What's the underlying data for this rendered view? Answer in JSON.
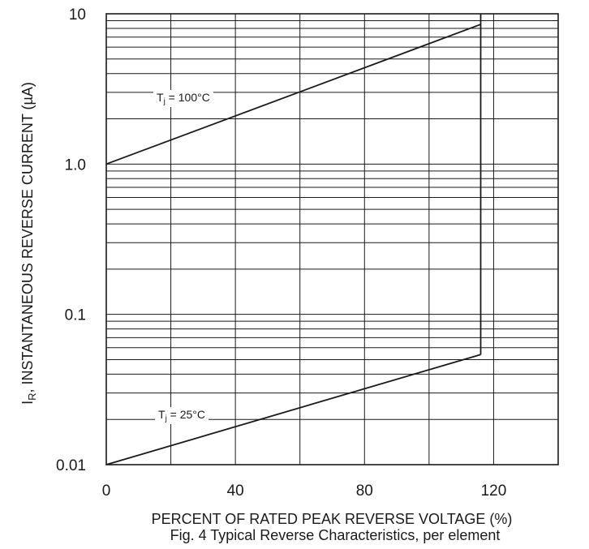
{
  "chart_data": {
    "type": "line",
    "xlabel": "PERCENT OF RATED PEAK REVERSE VOLTAGE (%)",
    "ylabel_main": "I",
    "ylabel_sub": "R",
    "ylabel_rest": ", INSTANTANEOUS REVERSE CURRENT (µA)",
    "caption": "Fig. 4  Typical Reverse Characteristics, per element",
    "xlim": [
      0,
      140
    ],
    "ylim": [
      0.01,
      10
    ],
    "y_scale": "log",
    "grid": true,
    "x_ticks": [
      0,
      40,
      80,
      120
    ],
    "x_tick_labels": [
      "0",
      "40",
      "80",
      "120"
    ],
    "y_ticks": [
      0.01,
      0.1,
      1,
      10
    ],
    "y_tick_labels": [
      "0.01",
      "0.1",
      "1.0",
      "10"
    ],
    "series": [
      {
        "name_main": "T",
        "name_sub": "j",
        "name_rest": " = 100°C",
        "x": [
          0,
          116
        ],
        "y": [
          1.0,
          8.5
        ]
      },
      {
        "name_main": "T",
        "name_sub": "j",
        "name_rest": " = 25°C",
        "x": [
          0,
          116
        ],
        "y": [
          0.01,
          0.054
        ]
      }
    ]
  }
}
